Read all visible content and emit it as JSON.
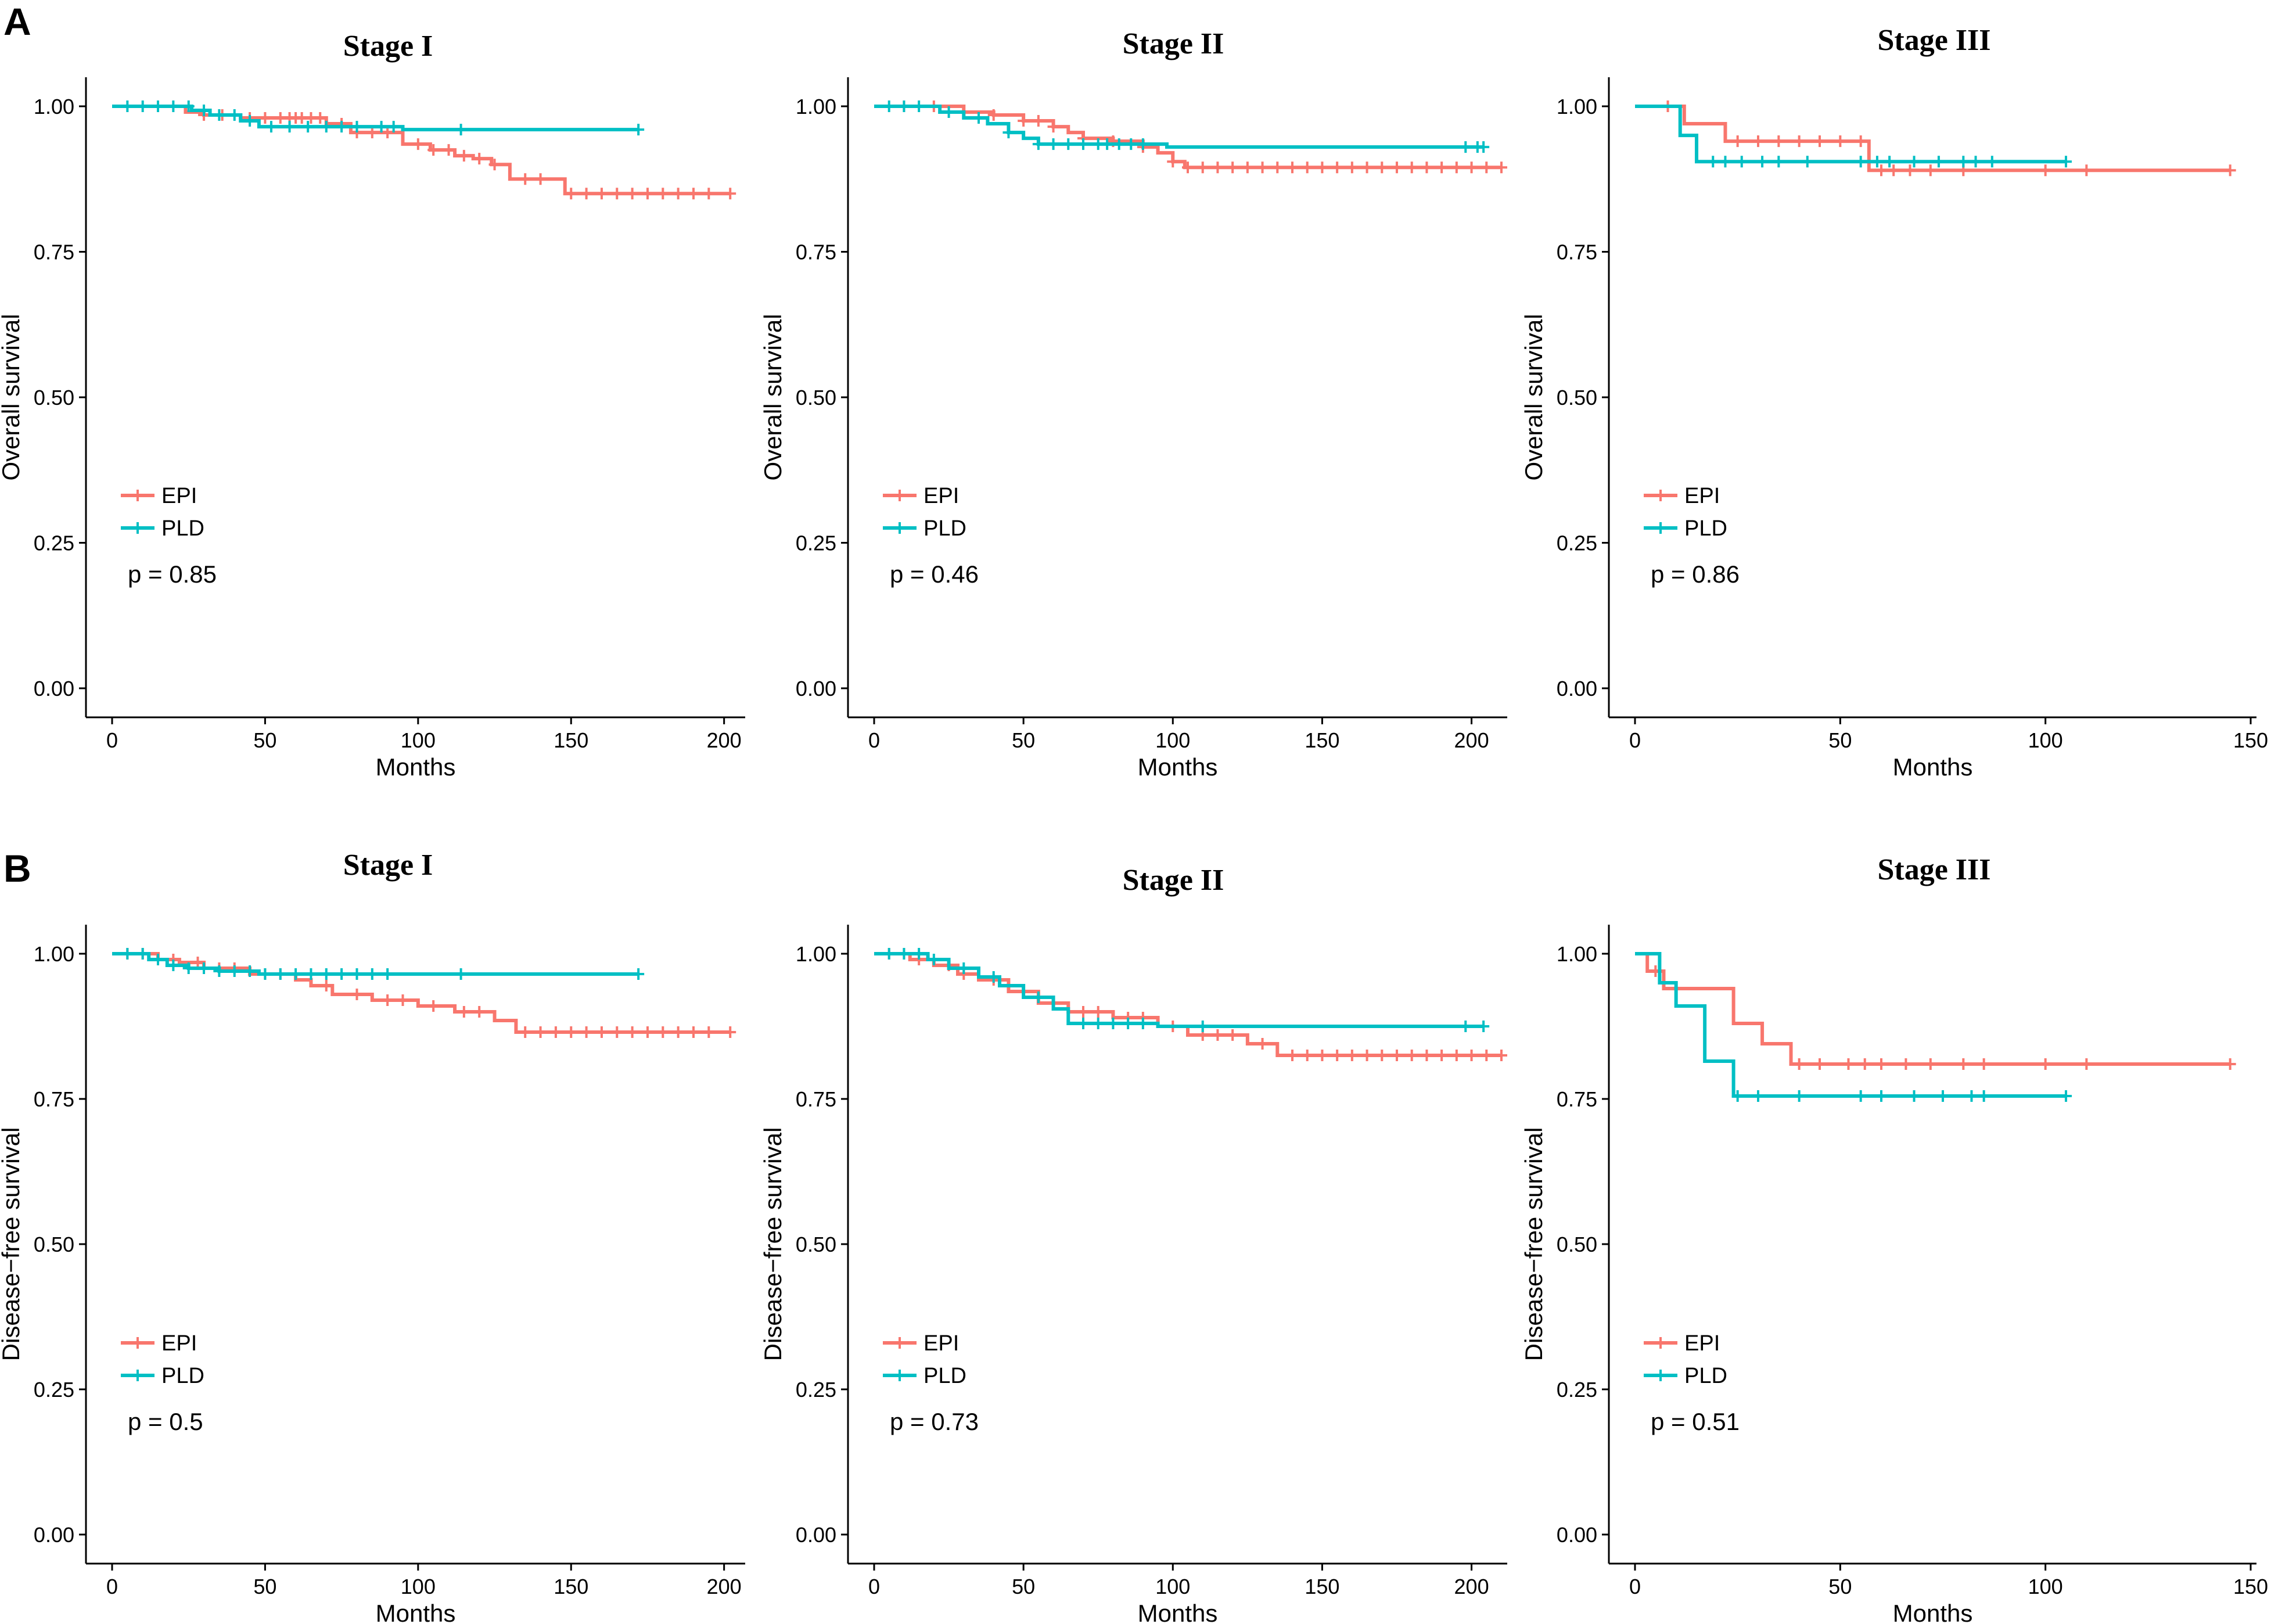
{
  "figure": {
    "panel_labels": [
      "A",
      "B"
    ],
    "series_colors": {
      "EPI": "#F8766D",
      "PLD": "#00BFC4"
    }
  },
  "chart_data": [
    {
      "type": "line",
      "id": "A1",
      "row": "A",
      "title": "Stage I",
      "xlabel": "Months",
      "ylabel": "Overall survival",
      "xlim": [
        0,
        205
      ],
      "ylim": [
        0,
        1
      ],
      "xticks": [
        0,
        50,
        100,
        150,
        200
      ],
      "xtick_labels": [
        "0",
        "50",
        "100",
        "150",
        "200"
      ],
      "yticks": [
        0,
        0.25,
        0.5,
        0.75,
        1
      ],
      "ytick_labels": [
        "0.00",
        "0.25",
        "0.50",
        "0.75",
        "1.00"
      ],
      "legend": [
        "EPI",
        "PLD"
      ],
      "annotation": "p = 0.85",
      "series": [
        {
          "name": "EPI",
          "color": "#F8766D",
          "x": [
            0,
            24,
            30,
            42,
            70,
            78,
            95,
            104,
            112,
            118,
            124,
            130,
            148,
            202
          ],
          "y": [
            1.0,
            0.99,
            0.985,
            0.98,
            0.97,
            0.955,
            0.935,
            0.925,
            0.915,
            0.91,
            0.9,
            0.875,
            0.85,
            0.85
          ],
          "censor": [
            30,
            36,
            45,
            50,
            55,
            58,
            60,
            62,
            65,
            68,
            75,
            80,
            85,
            90,
            100,
            105,
            110,
            115,
            120,
            125,
            135,
            140,
            150,
            155,
            160,
            165,
            170,
            175,
            180,
            185,
            190,
            195,
            202
          ]
        },
        {
          "name": "PLD",
          "color": "#00BFC4",
          "x": [
            0,
            26,
            32,
            42,
            48,
            85,
            95,
            172
          ],
          "y": [
            1.0,
            0.993,
            0.985,
            0.975,
            0.965,
            0.965,
            0.96,
            0.96
          ],
          "censor": [
            5,
            10,
            15,
            20,
            25,
            30,
            35,
            40,
            45,
            52,
            58,
            64,
            70,
            75,
            80,
            88,
            92,
            114,
            172
          ]
        }
      ]
    },
    {
      "type": "line",
      "id": "A2",
      "row": "A",
      "title": "Stage II",
      "xlabel": "Months",
      "ylabel": "Overall survival",
      "xlim": [
        0,
        210
      ],
      "ylim": [
        0,
        1
      ],
      "xticks": [
        0,
        50,
        100,
        150,
        200
      ],
      "xtick_labels": [
        "0",
        "50",
        "100",
        "150",
        "200"
      ],
      "yticks": [
        0,
        0.25,
        0.5,
        0.75,
        1
      ],
      "ytick_labels": [
        "0.00",
        "0.25",
        "0.50",
        "0.75",
        "1.00"
      ],
      "legend": [
        "EPI",
        "PLD"
      ],
      "annotation": "p = 0.46",
      "series": [
        {
          "name": "EPI",
          "color": "#F8766D",
          "x": [
            0,
            30,
            40,
            50,
            60,
            65,
            70,
            80,
            90,
            95,
            100,
            104,
            210
          ],
          "y": [
            1.0,
            0.99,
            0.985,
            0.975,
            0.965,
            0.955,
            0.945,
            0.94,
            0.93,
            0.92,
            0.905,
            0.895,
            0.895
          ],
          "censor": [
            10,
            20,
            30,
            40,
            50,
            55,
            60,
            70,
            80,
            90,
            100,
            105,
            110,
            115,
            120,
            125,
            130,
            135,
            140,
            145,
            150,
            155,
            160,
            165,
            170,
            175,
            180,
            185,
            190,
            195,
            200,
            205,
            210
          ]
        },
        {
          "name": "PLD",
          "color": "#00BFC4",
          "x": [
            0,
            22,
            30,
            38,
            45,
            50,
            55,
            80,
            98,
            204
          ],
          "y": [
            1.0,
            0.99,
            0.98,
            0.97,
            0.955,
            0.945,
            0.935,
            0.935,
            0.93,
            0.93
          ],
          "censor": [
            5,
            10,
            15,
            25,
            35,
            45,
            55,
            60,
            65,
            70,
            75,
            78,
            82,
            86,
            90,
            198,
            202,
            204
          ]
        }
      ]
    },
    {
      "type": "line",
      "id": "A3",
      "row": "A",
      "title": "Stage III",
      "xlabel": "Months",
      "ylabel": "Overall survival",
      "xlim": [
        0,
        150
      ],
      "ylim": [
        0,
        1
      ],
      "xticks": [
        0,
        50,
        100,
        150
      ],
      "xtick_labels": [
        "0",
        "50",
        "100",
        "150"
      ],
      "yticks": [
        0,
        0.25,
        0.5,
        0.75,
        1
      ],
      "ytick_labels": [
        "0.00",
        "0.25",
        "0.50",
        "0.75",
        "1.00"
      ],
      "legend": [
        "EPI",
        "PLD"
      ],
      "annotation": "p = 0.86",
      "series": [
        {
          "name": "EPI",
          "color": "#F8766D",
          "x": [
            0,
            12,
            22,
            57,
            145
          ],
          "y": [
            1.0,
            0.97,
            0.94,
            0.89,
            0.89
          ],
          "censor": [
            8,
            25,
            30,
            35,
            40,
            45,
            50,
            55,
            60,
            63,
            67,
            72,
            80,
            100,
            110,
            145
          ]
        },
        {
          "name": "PLD",
          "color": "#00BFC4",
          "x": [
            0,
            11,
            15,
            105
          ],
          "y": [
            1.0,
            0.95,
            0.905,
            0.905
          ],
          "censor": [
            19,
            22,
            26,
            31,
            35,
            42,
            55,
            59,
            62,
            68,
            74,
            80,
            83,
            87,
            105
          ]
        }
      ]
    },
    {
      "type": "line",
      "id": "B1",
      "row": "B",
      "title": "Stage I",
      "xlabel": "Months",
      "ylabel": "Disease−free survival",
      "xlim": [
        0,
        205
      ],
      "ylim": [
        0,
        1
      ],
      "xticks": [
        0,
        50,
        100,
        150,
        200
      ],
      "xtick_labels": [
        "0",
        "50",
        "100",
        "150",
        "200"
      ],
      "yticks": [
        0,
        0.25,
        0.5,
        0.75,
        1
      ],
      "ytick_labels": [
        "0.00",
        "0.25",
        "0.50",
        "0.75",
        "1.00"
      ],
      "legend": [
        "EPI",
        "PLD"
      ],
      "annotation": "p = 0.5",
      "series": [
        {
          "name": "EPI",
          "color": "#F8766D",
          "x": [
            0,
            15,
            22,
            30,
            45,
            60,
            65,
            72,
            85,
            100,
            112,
            125,
            132,
            202
          ],
          "y": [
            1.0,
            0.99,
            0.985,
            0.975,
            0.965,
            0.955,
            0.945,
            0.93,
            0.92,
            0.91,
            0.9,
            0.885,
            0.865,
            0.865
          ],
          "censor": [
            5,
            10,
            20,
            28,
            35,
            40,
            50,
            55,
            70,
            80,
            90,
            95,
            105,
            115,
            120,
            135,
            140,
            145,
            150,
            155,
            160,
            165,
            170,
            175,
            180,
            185,
            190,
            195,
            202
          ]
        },
        {
          "name": "PLD",
          "color": "#00BFC4",
          "x": [
            0,
            12,
            18,
            25,
            35,
            48,
            172
          ],
          "y": [
            1.0,
            0.99,
            0.98,
            0.975,
            0.97,
            0.965,
            0.965
          ],
          "censor": [
            5,
            10,
            15,
            20,
            25,
            30,
            35,
            40,
            45,
            50,
            55,
            60,
            65,
            70,
            75,
            80,
            85,
            90,
            114,
            172
          ]
        }
      ]
    },
    {
      "type": "line",
      "id": "B2",
      "row": "B",
      "title": "Stage II",
      "xlabel": "Months",
      "ylabel": "Disease−free survival",
      "xlim": [
        0,
        210
      ],
      "ylim": [
        0,
        1
      ],
      "xticks": [
        0,
        50,
        100,
        150,
        200
      ],
      "xtick_labels": [
        "0",
        "50",
        "100",
        "150",
        "200"
      ],
      "yticks": [
        0,
        0.25,
        0.5,
        0.75,
        1
      ],
      "ytick_labels": [
        "0.00",
        "0.25",
        "0.50",
        "0.75",
        "1.00"
      ],
      "legend": [
        "EPI",
        "PLD"
      ],
      "annotation": "p = 0.73",
      "series": [
        {
          "name": "EPI",
          "color": "#F8766D",
          "x": [
            0,
            12,
            20,
            28,
            35,
            45,
            55,
            65,
            80,
            95,
            105,
            125,
            135,
            210
          ],
          "y": [
            1.0,
            0.99,
            0.98,
            0.965,
            0.955,
            0.935,
            0.915,
            0.9,
            0.89,
            0.875,
            0.86,
            0.845,
            0.825,
            0.825
          ],
          "censor": [
            5,
            10,
            15,
            25,
            30,
            40,
            50,
            60,
            70,
            75,
            85,
            90,
            100,
            110,
            115,
            120,
            130,
            140,
            145,
            150,
            155,
            160,
            165,
            170,
            175,
            180,
            185,
            190,
            195,
            200,
            205,
            210
          ]
        },
        {
          "name": "PLD",
          "color": "#00BFC4",
          "x": [
            0,
            18,
            25,
            35,
            42,
            50,
            60,
            65,
            95,
            204
          ],
          "y": [
            1.0,
            0.99,
            0.975,
            0.96,
            0.945,
            0.925,
            0.905,
            0.88,
            0.875,
            0.875
          ],
          "censor": [
            5,
            10,
            15,
            20,
            30,
            40,
            55,
            70,
            75,
            80,
            85,
            90,
            110,
            198,
            204
          ]
        }
      ]
    },
    {
      "type": "line",
      "id": "B3",
      "row": "B",
      "title": "Stage III",
      "xlabel": "Months",
      "ylabel": "Disease−free survival",
      "xlim": [
        0,
        150
      ],
      "ylim": [
        0,
        1
      ],
      "xticks": [
        0,
        50,
        100,
        150
      ],
      "xtick_labels": [
        "0",
        "50",
        "100",
        "150"
      ],
      "yticks": [
        0,
        0.25,
        0.5,
        0.75,
        1
      ],
      "ytick_labels": [
        "0.00",
        "0.25",
        "0.50",
        "0.75",
        "1.00"
      ],
      "legend": [
        "EPI",
        "PLD"
      ],
      "annotation": "p = 0.51",
      "series": [
        {
          "name": "EPI",
          "color": "#F8766D",
          "x": [
            0,
            3,
            7,
            22,
            24,
            31,
            38,
            145
          ],
          "y": [
            1.0,
            0.97,
            0.94,
            0.94,
            0.88,
            0.845,
            0.81,
            0.81
          ],
          "censor": [
            5,
            40,
            45,
            52,
            56,
            60,
            66,
            72,
            80,
            85,
            100,
            110,
            145
          ]
        },
        {
          "name": "PLD",
          "color": "#00BFC4",
          "x": [
            0,
            6,
            10,
            17,
            24,
            105
          ],
          "y": [
            1.0,
            0.95,
            0.91,
            0.815,
            0.755,
            0.755
          ],
          "censor": [
            25,
            30,
            40,
            55,
            60,
            68,
            75,
            82,
            85,
            105
          ]
        }
      ]
    }
  ]
}
